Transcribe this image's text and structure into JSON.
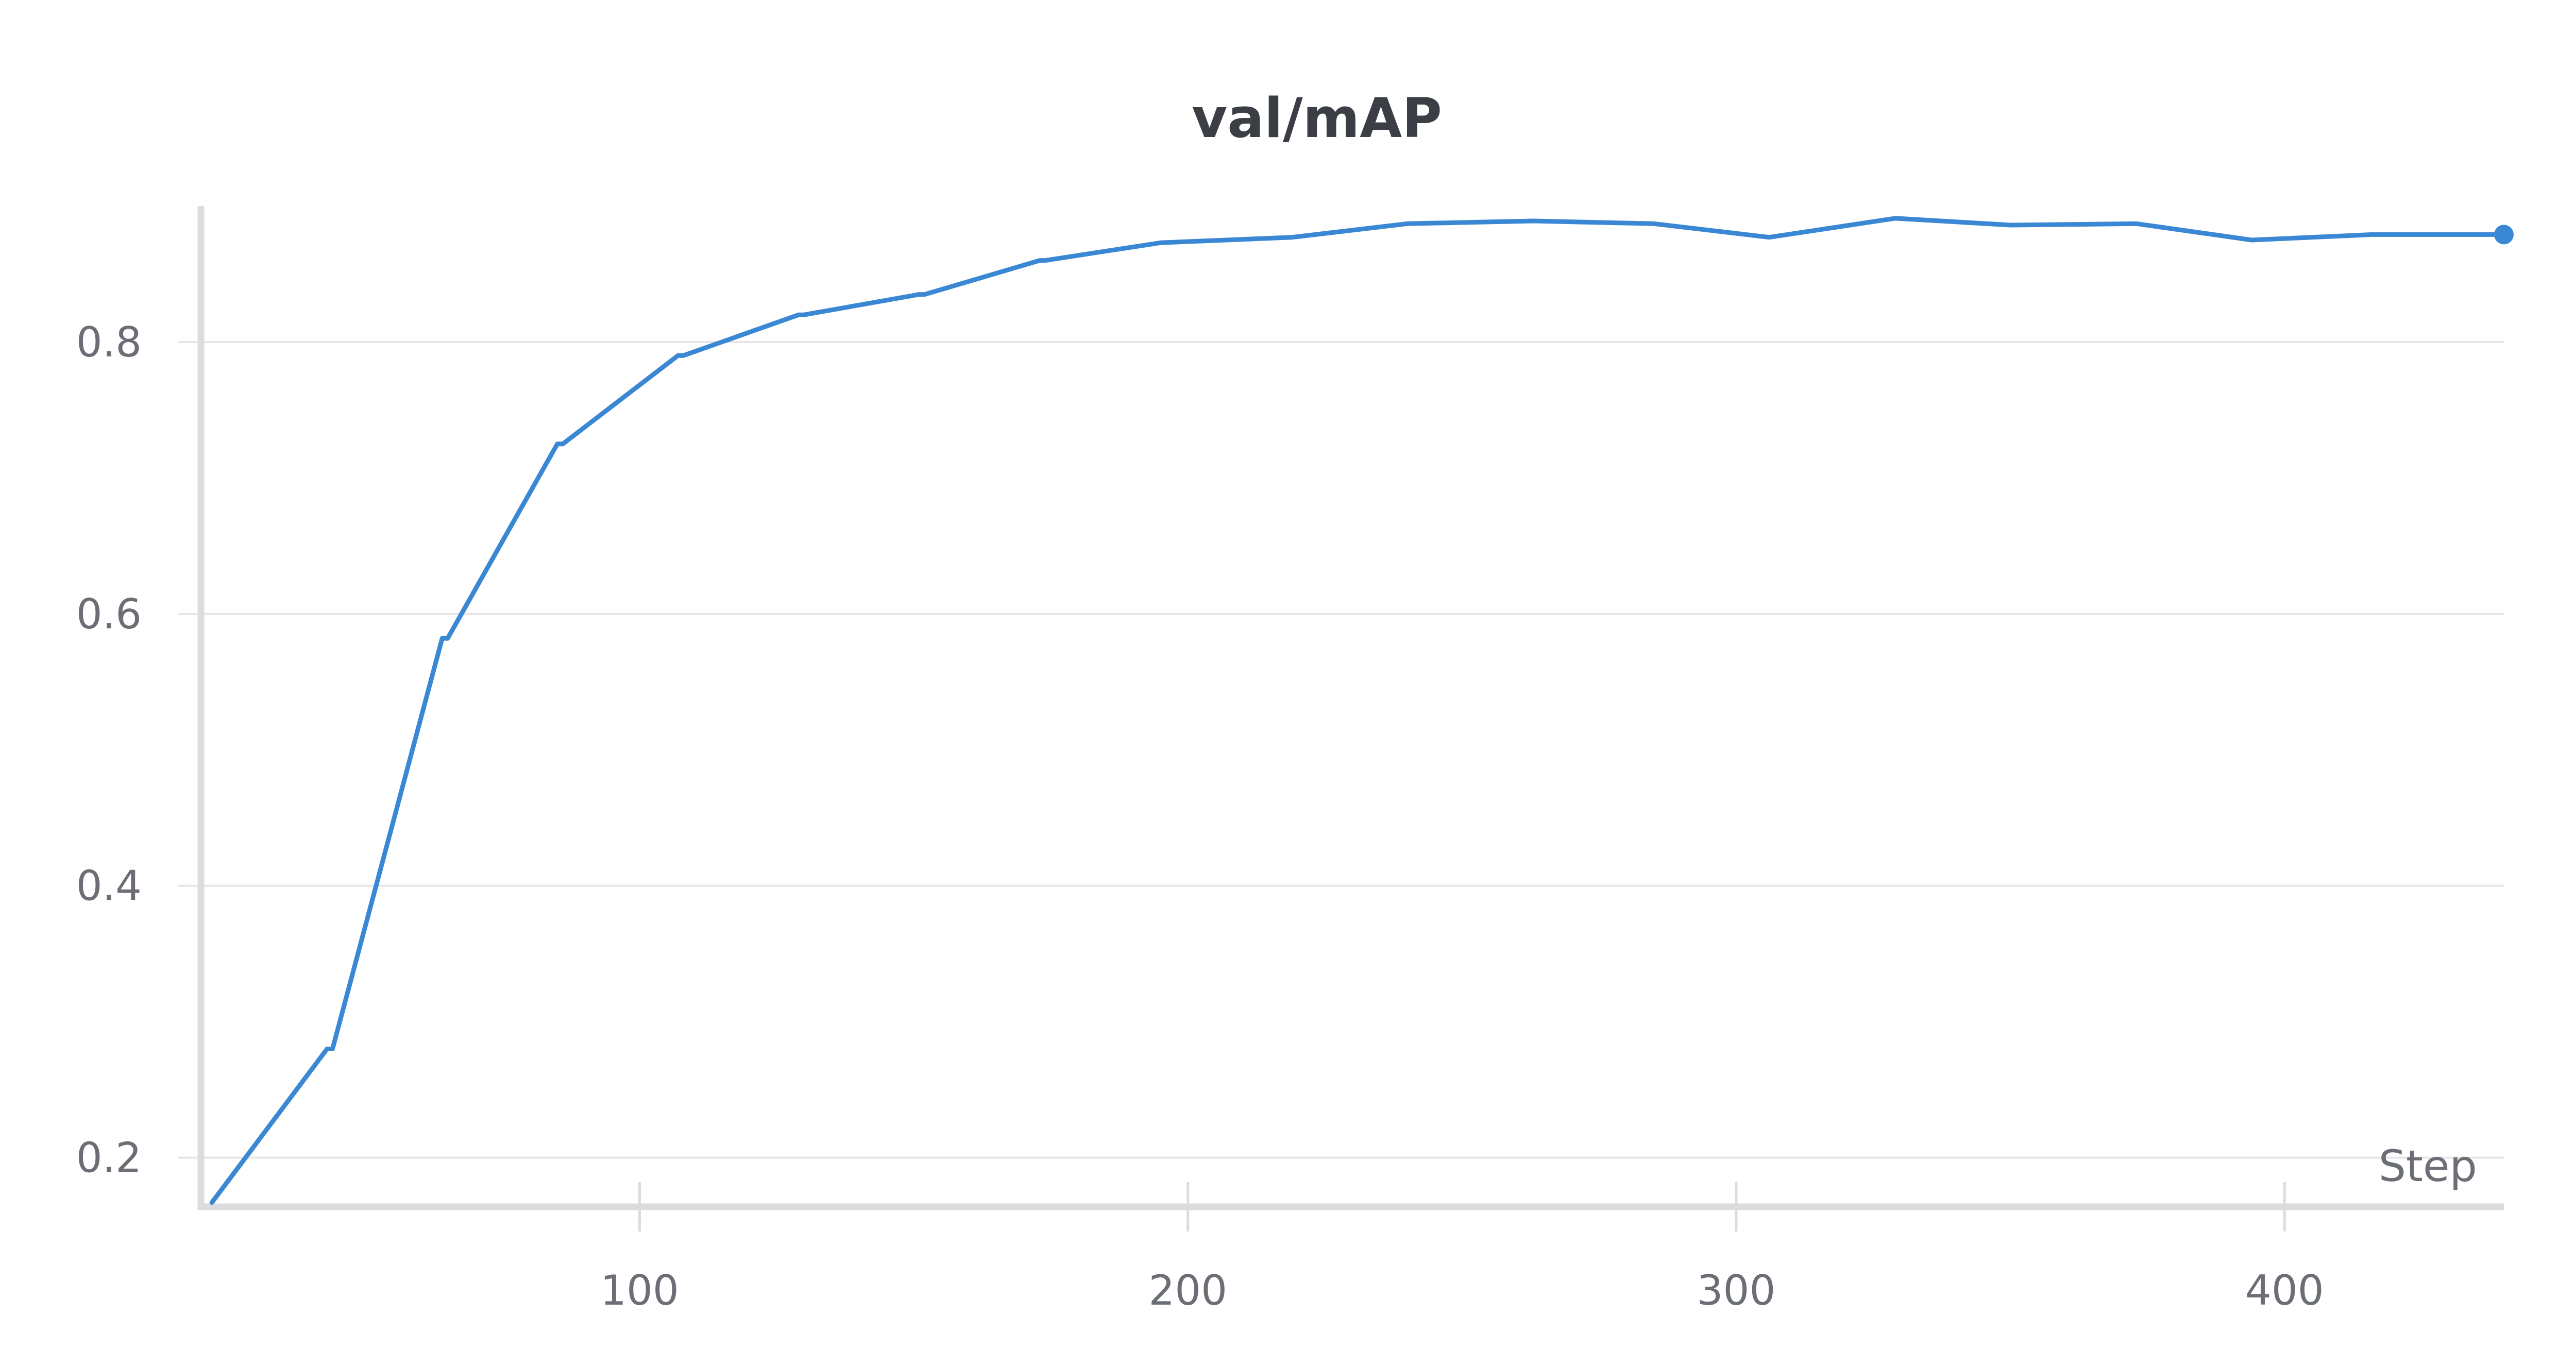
{
  "chart_data": {
    "type": "line",
    "title": "val/mAP",
    "xlabel": "Step",
    "ylabel": "",
    "xlim": [
      20,
      440
    ],
    "ylim": [
      0.165,
      0.9
    ],
    "xticks": [
      100,
      200,
      300,
      400
    ],
    "xtick_labels": [
      "100",
      "200",
      "300",
      "400"
    ],
    "yticks": [
      0.2,
      0.4,
      0.6,
      0.8
    ],
    "ytick_labels": [
      "0.2",
      "0.4",
      "0.6",
      "0.8"
    ],
    "grid": true,
    "legend": "none",
    "colors": {
      "line": "#3a88d4",
      "grid": "#e6e6e8",
      "axis": "#dcdcde",
      "text": "#6b6e75",
      "title": "#3b3e45"
    },
    "series": [
      {
        "x": [
          22,
          43,
          44,
          64,
          65,
          85,
          86,
          107,
          108,
          129,
          130,
          151,
          152,
          173,
          174,
          195,
          219,
          240,
          263,
          285,
          306,
          329,
          350,
          373,
          394,
          416,
          440
        ],
        "y": [
          0.167,
          0.28,
          0.28,
          0.582,
          0.582,
          0.725,
          0.725,
          0.79,
          0.79,
          0.82,
          0.82,
          0.835,
          0.835,
          0.86,
          0.86,
          0.873,
          0.877,
          0.887,
          0.889,
          0.887,
          0.877,
          0.891,
          0.886,
          0.887,
          0.875,
          0.879,
          0.879
        ]
      }
    ]
  }
}
